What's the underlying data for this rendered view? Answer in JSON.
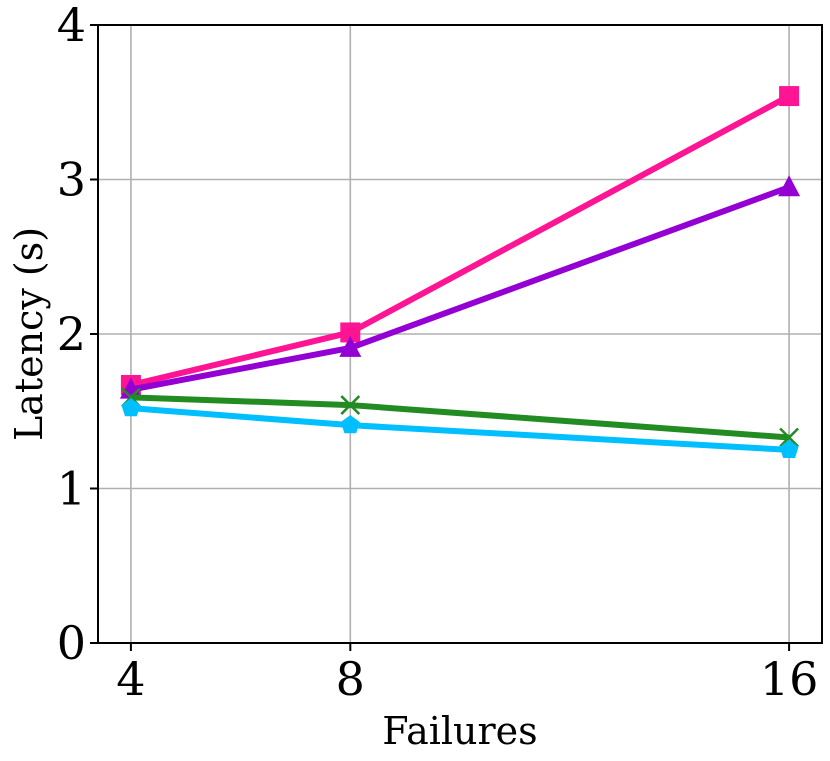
{
  "chart_data": {
    "type": "line",
    "title": "",
    "xlabel": "Failures",
    "ylabel": "Latency (s)",
    "x": [
      4,
      8,
      16
    ],
    "x_tick_labels": [
      "4",
      "8",
      "16"
    ],
    "xlim": [
      3.4,
      16.6
    ],
    "ylim": [
      0,
      4
    ],
    "y_ticks": [
      0,
      1,
      2,
      3,
      4
    ],
    "y_tick_labels": [
      "0",
      "1",
      "2",
      "3",
      "4"
    ],
    "grid": true,
    "legend": "none",
    "series": [
      {
        "color": "#ff1493",
        "marker": "square",
        "values": [
          1.67,
          2.01,
          3.54
        ]
      },
      {
        "color": "#9400d3",
        "marker": "triangle",
        "values": [
          1.64,
          1.91,
          2.95
        ]
      },
      {
        "color": "#228b22",
        "marker": "x",
        "values": [
          1.59,
          1.54,
          1.33
        ]
      },
      {
        "color": "#00bfff",
        "marker": "pentagon",
        "values": [
          1.52,
          1.41,
          1.25
        ]
      }
    ]
  }
}
